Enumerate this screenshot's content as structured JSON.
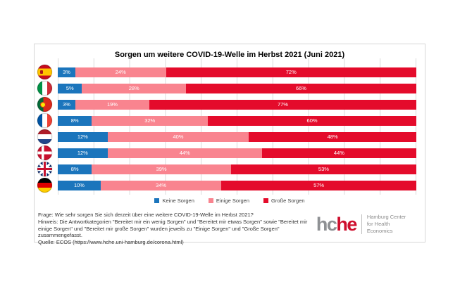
{
  "title": "Sorgen um weitere COVID-19-Welle im Herbst 2021 (Juni 2021)",
  "chart_data": {
    "type": "bar",
    "stacked": true,
    "orientation": "horizontal",
    "unit": "%",
    "xlim": [
      0,
      100
    ],
    "gridlines": "vertical, 10% intervals",
    "legend_position": "bottom",
    "categories": [
      "Spanien",
      "Italien",
      "Portugal",
      "Frankreich",
      "Niederlande",
      "Dänemark",
      "Großbritannien",
      "Deutschland"
    ],
    "flags": [
      "spain",
      "italy",
      "portugal",
      "france",
      "netherlands",
      "denmark",
      "uk",
      "germany"
    ],
    "series": [
      {
        "name": "Keine Sorgen",
        "color": "#1b75bc",
        "values": [
          3,
          5,
          3,
          8,
          12,
          12,
          8,
          10
        ]
      },
      {
        "name": "Einige Sorgen",
        "color": "#f9848f",
        "values": [
          24,
          28,
          19,
          32,
          40,
          44,
          39,
          34
        ]
      },
      {
        "name": "Große Sorgen",
        "color": "#e40b2b",
        "values": [
          72,
          66,
          77,
          60,
          48,
          44,
          53,
          57
        ]
      }
    ]
  },
  "footnotes": {
    "frage": "Frage: Wie sehr sorgen Sie sich derzeit über eine weitere COVID-19-Welle im Herbst 2021?",
    "hinweis": "Hinweis: Die Antwortkategorien \"Bereitet mir ein wenig Sorgen\" und \"Bereitet mir etwas Sorgen\" sowie \"Bereitet mir einige Sorgen\" und \"Bereitet mir große Sorgen\" wurden jeweils zu \"Einige Sorgen\" und \"Große Sorgen\" zusammengefasst.",
    "quelle": "Quelle: ECOS (https://www.hche.uni-hamburg.de/corona.html)"
  },
  "logo": {
    "word_gray": "hc",
    "word_red": "he",
    "subtitle_line1": "Hamburg Center",
    "subtitle_line2": "for Health Economics",
    "gray": "#8f9194",
    "red": "#ce0e2d"
  }
}
